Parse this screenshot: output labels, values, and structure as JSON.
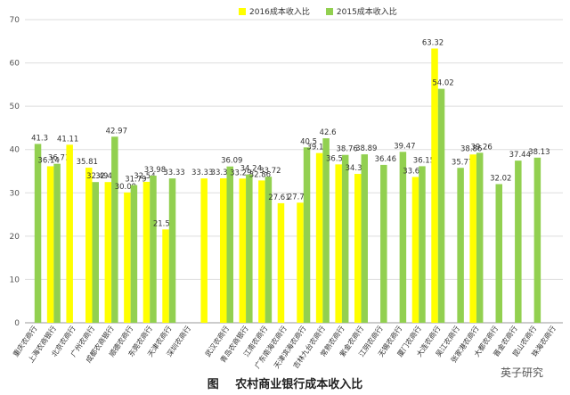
{
  "chart_data": {
    "type": "bar",
    "title": "农村商业银行成本收入比",
    "figure_label": "图",
    "xlabel": "",
    "ylabel": "",
    "ylim": [
      0,
      70
    ],
    "yticks": [
      0,
      10,
      20,
      30,
      40,
      50,
      60,
      70
    ],
    "grid": true,
    "legend_position": "top",
    "categories": [
      "重庆农商行",
      "上海农商银行",
      "北京农商行",
      "广州农商行",
      "成都农商银行",
      "顺德农商行",
      "东莞农商行",
      "天津农商行",
      "深圳农商行",
      "",
      "武汉农商行",
      "青岛农商银行",
      "江南农商行",
      "广东南海农商行",
      "天津滨海农商行",
      "吉林九台农商行",
      "常熟农商行",
      "紫金农商行",
      "江阴农商行",
      "无锡农商行",
      "厦门农商行",
      "大连农商行",
      "吴江农商行",
      "张家港农商行",
      "大都农商行",
      "晋金农商行",
      "昆山农商行",
      "珠海农商行"
    ],
    "series": [
      {
        "name": "2016成本收入比",
        "color": "#ffff00",
        "values": [
          null,
          36.14,
          41.11,
          35.81,
          32.49,
          30.09,
          32.54,
          21.55,
          null,
          33.33,
          33.35,
          33.29,
          32.86,
          27.61,
          27.73,
          39.19,
          36.57,
          34.37,
          null,
          null,
          33.67,
          63.32,
          null,
          38.86,
          null,
          null,
          null,
          null
        ]
      },
      {
        "name": "2015成本收入比",
        "color": "#92d050",
        "values": [
          41.3,
          36.71,
          null,
          32.49,
          42.97,
          31.79,
          33.98,
          33.33,
          null,
          null,
          36.09,
          34.24,
          33.72,
          null,
          40.5,
          42.6,
          38.76,
          38.89,
          36.46,
          39.47,
          36.15,
          54.02,
          35.77,
          39.26,
          32.02,
          37.44,
          38.13,
          null
        ]
      }
    ]
  },
  "caption": {
    "figure_label": "图",
    "title": "农村商业银行成本收入比"
  },
  "watermark": "英子研究",
  "legend": {
    "items": [
      {
        "label": "2016成本收入比",
        "color": "#ffff00"
      },
      {
        "label": "2015成本收入比",
        "color": "#92d050"
      }
    ]
  }
}
